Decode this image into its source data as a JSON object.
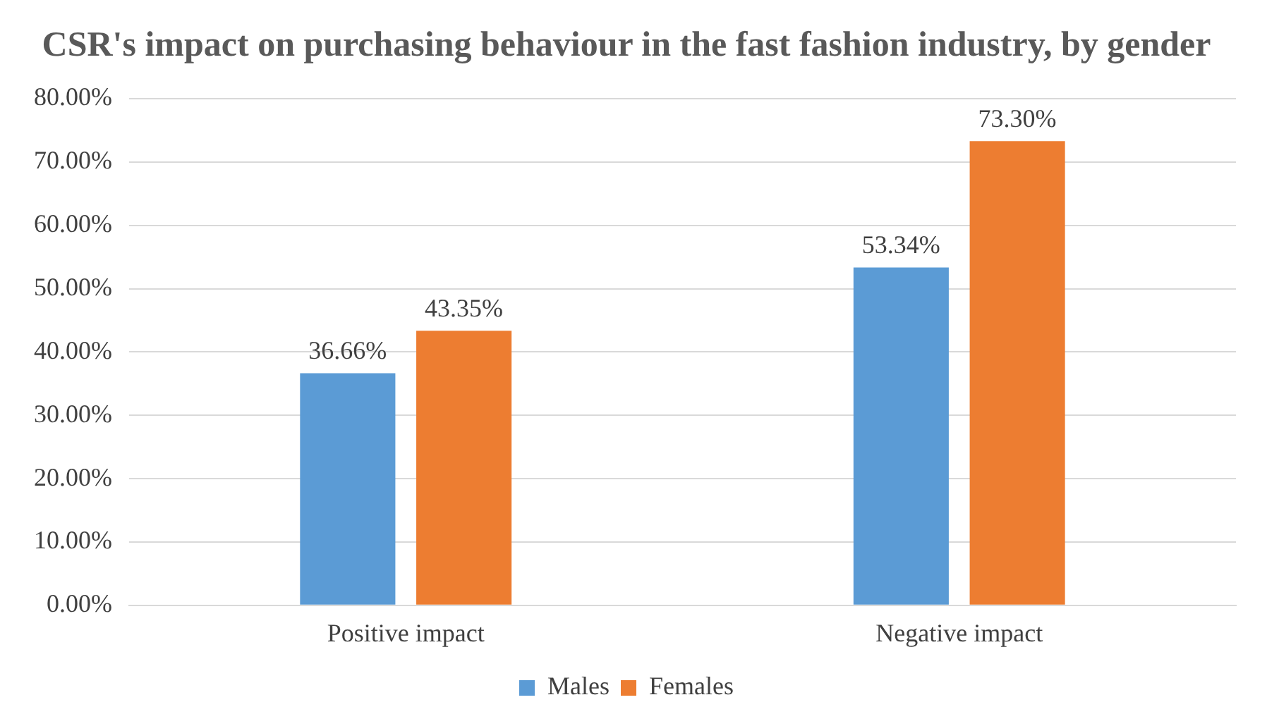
{
  "chart_data": {
    "type": "bar",
    "title": "CSR's impact on purchasing behaviour in the fast fashion industry, by gender",
    "categories": [
      "Positive impact",
      "Negative impact"
    ],
    "series": [
      {
        "name": "Males",
        "color": "#5b9bd5",
        "values": [
          36.66,
          53.34
        ],
        "value_labels": [
          "36.66%",
          "53.34%"
        ]
      },
      {
        "name": "Females",
        "color": "#ed7d31",
        "values": [
          43.35,
          73.3
        ],
        "value_labels": [
          "43.35%",
          "73.30%"
        ]
      }
    ],
    "ylim": [
      0,
      80
    ],
    "yticks": [
      {
        "value": 0,
        "label": "0.00%"
      },
      {
        "value": 10,
        "label": "10.00%"
      },
      {
        "value": 20,
        "label": "20.00%"
      },
      {
        "value": 30,
        "label": "30.00%"
      },
      {
        "value": 40,
        "label": "40.00%"
      },
      {
        "value": 50,
        "label": "50.00%"
      },
      {
        "value": 60,
        "label": "60.00%"
      },
      {
        "value": 70,
        "label": "70.00%"
      },
      {
        "value": 80,
        "label": "80.00%"
      }
    ],
    "grid": "y",
    "legend": "bottom"
  }
}
